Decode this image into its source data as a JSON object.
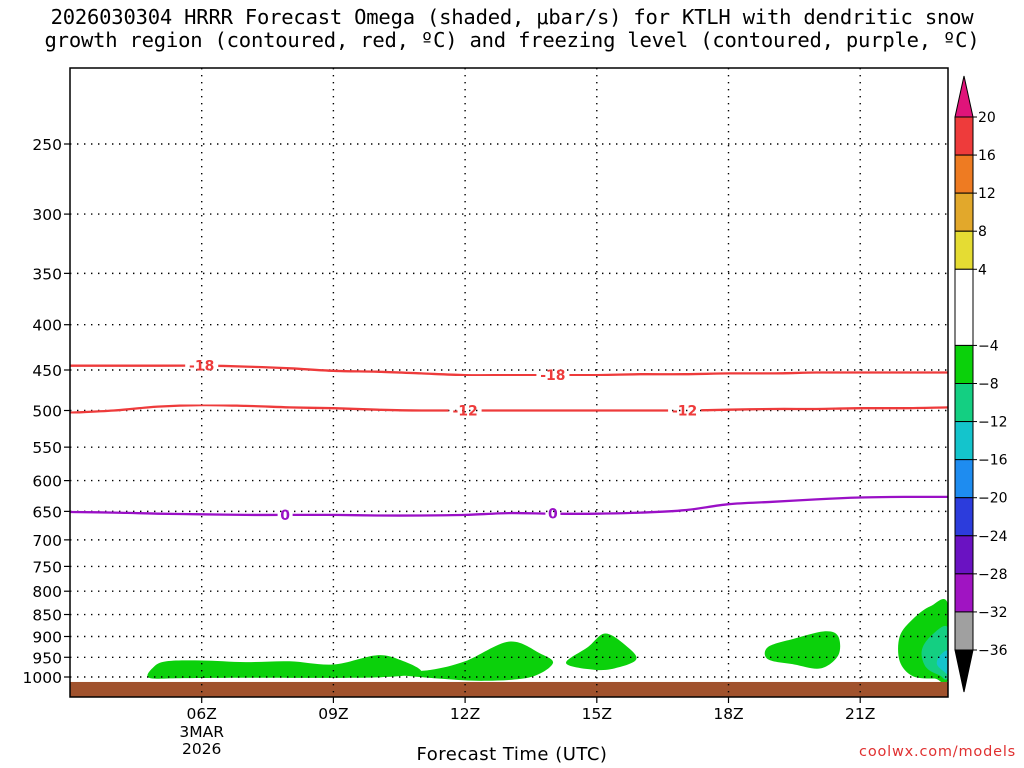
{
  "title_lines": [
    "2026030304 HRRR Forecast Omega (shaded, μbar/s) for KTLH with dendritic snow",
    "growth region (contoured, red, ºC) and freezing level (contoured, purple, ºC)"
  ],
  "xlabel": "Forecast Time (UTC)",
  "credit": "coolwx.com/models",
  "chart_data": {
    "type": "time-height cross section",
    "x_axis": {
      "unit": "hours (UTC)",
      "range": [
        3.0,
        23.0
      ],
      "ticks": [
        {
          "hour": 6,
          "label": "06Z",
          "sublabels": [
            "3MAR",
            "2026"
          ]
        },
        {
          "hour": 9,
          "label": "09Z",
          "sublabels": []
        },
        {
          "hour": 12,
          "label": "12Z",
          "sublabels": []
        },
        {
          "hour": 15,
          "label": "15Z",
          "sublabels": []
        },
        {
          "hour": 18,
          "label": "18Z",
          "sublabels": []
        },
        {
          "hour": 21,
          "label": "21Z",
          "sublabels": []
        }
      ]
    },
    "y_axis": {
      "unit": "hPa",
      "scale": "log",
      "range": [
        1025,
        200
      ],
      "ticks": [
        250,
        300,
        350,
        400,
        450,
        500,
        550,
        600,
        650,
        700,
        750,
        800,
        850,
        900,
        950,
        1000
      ]
    },
    "grid": "dotted",
    "ground_pressure_hPa": 1013,
    "contours": [
      {
        "level": "-18",
        "color": "#ee3b3b",
        "labels_at_hours": [
          6.0,
          14.0
        ],
        "points": [
          [
            3.0,
            445
          ],
          [
            5.0,
            445
          ],
          [
            6.0,
            445
          ],
          [
            7.0,
            446
          ],
          [
            8.0,
            448
          ],
          [
            9.0,
            451
          ],
          [
            10.0,
            452
          ],
          [
            11.0,
            454
          ],
          [
            12.0,
            456
          ],
          [
            13.0,
            456
          ],
          [
            14.0,
            456
          ],
          [
            15.0,
            456
          ],
          [
            16.0,
            455
          ],
          [
            17.0,
            455
          ],
          [
            18.0,
            454
          ],
          [
            19.0,
            454
          ],
          [
            20.0,
            453
          ],
          [
            21.0,
            453
          ],
          [
            22.0,
            453
          ],
          [
            23.0,
            453
          ]
        ]
      },
      {
        "level": "-12",
        "color": "#ee3b3b",
        "labels_at_hours": [
          12.0,
          17.0
        ],
        "points": [
          [
            3.0,
            503
          ],
          [
            4.0,
            500
          ],
          [
            5.0,
            495
          ],
          [
            6.0,
            493
          ],
          [
            7.0,
            494
          ],
          [
            8.0,
            496
          ],
          [
            9.0,
            497
          ],
          [
            10.0,
            499
          ],
          [
            11.0,
            500
          ],
          [
            12.0,
            500
          ],
          [
            13.0,
            500
          ],
          [
            14.0,
            500
          ],
          [
            15.0,
            500
          ],
          [
            16.0,
            500
          ],
          [
            17.0,
            500
          ],
          [
            18.0,
            499
          ],
          [
            19.0,
            498
          ],
          [
            20.0,
            498
          ],
          [
            21.0,
            497
          ],
          [
            22.0,
            497
          ],
          [
            23.0,
            496
          ]
        ]
      },
      {
        "level": "0",
        "color": "#9a10c6",
        "labels_at_hours": [
          7.9,
          14.0
        ],
        "points": [
          [
            3.0,
            651
          ],
          [
            4.0,
            652
          ],
          [
            5.0,
            654
          ],
          [
            6.0,
            655
          ],
          [
            7.0,
            656
          ],
          [
            8.0,
            656
          ],
          [
            9.0,
            656
          ],
          [
            10.0,
            657
          ],
          [
            11.0,
            657
          ],
          [
            12.0,
            656
          ],
          [
            13.0,
            653
          ],
          [
            14.0,
            654
          ],
          [
            15.0,
            654
          ],
          [
            16.0,
            652
          ],
          [
            17.0,
            648
          ],
          [
            18.0,
            638
          ],
          [
            19.0,
            634
          ],
          [
            20.0,
            630
          ],
          [
            21.0,
            627
          ],
          [
            22.0,
            626
          ],
          [
            23.0,
            626
          ]
        ]
      }
    ],
    "shaded_regions": [
      {
        "value_range": [
          -8,
          -4
        ],
        "points": [
          [
            4.8,
            1002
          ],
          [
            4.9,
            975
          ],
          [
            5.2,
            960
          ],
          [
            6.0,
            958
          ],
          [
            7.0,
            962
          ],
          [
            8.0,
            960
          ],
          [
            9.0,
            968
          ],
          [
            10.0,
            945
          ],
          [
            10.6,
            960
          ],
          [
            11.0,
            985
          ],
          [
            10.6,
            997
          ],
          [
            9.5,
            1002
          ],
          [
            7.0,
            1002
          ],
          [
            5.5,
            1003
          ]
        ]
      },
      {
        "value_range": [
          -8,
          -4
        ],
        "points": [
          [
            10.2,
            990
          ],
          [
            11.2,
            982
          ],
          [
            12.0,
            960
          ],
          [
            13.0,
            912
          ],
          [
            13.7,
            940
          ],
          [
            14.0,
            965
          ],
          [
            13.5,
            1000
          ],
          [
            12.5,
            1010
          ],
          [
            11.5,
            1005
          ]
        ]
      },
      {
        "value_range": [
          -8,
          -4
        ],
        "points": [
          [
            14.3,
            965
          ],
          [
            14.8,
            925
          ],
          [
            15.2,
            893
          ],
          [
            15.7,
            925
          ],
          [
            15.9,
            955
          ],
          [
            15.5,
            975
          ],
          [
            15.0,
            982
          ]
        ]
      },
      {
        "value_range": [
          -8,
          -4
        ],
        "points": [
          [
            18.9,
            925
          ],
          [
            19.5,
            905
          ],
          [
            20.2,
            888
          ],
          [
            20.5,
            900
          ],
          [
            20.5,
            945
          ],
          [
            20.1,
            978
          ],
          [
            19.5,
            968
          ],
          [
            18.9,
            955
          ]
        ]
      },
      {
        "value_range": [
          -8,
          -4
        ],
        "points": [
          [
            23.0,
            828
          ],
          [
            22.6,
            832
          ],
          [
            22.2,
            860
          ],
          [
            21.9,
            900
          ],
          [
            21.9,
            960
          ],
          [
            22.2,
            998
          ],
          [
            22.7,
            1004
          ],
          [
            23.0,
            1004
          ]
        ]
      },
      {
        "value_range": [
          -12,
          -8
        ],
        "points": [
          [
            23.0,
            880
          ],
          [
            22.6,
            900
          ],
          [
            22.4,
            935
          ],
          [
            22.5,
            975
          ],
          [
            22.8,
            995
          ],
          [
            23.0,
            998
          ]
        ]
      },
      {
        "value_range": [
          -16,
          -12
        ],
        "points": [
          [
            23.0,
            935
          ],
          [
            22.8,
            948
          ],
          [
            22.75,
            968
          ],
          [
            22.9,
            985
          ],
          [
            23.0,
            988
          ]
        ]
      }
    ],
    "colorbar": {
      "label_values": [
        20,
        16,
        12,
        8,
        4,
        -4,
        -8,
        -12,
        -16,
        -20,
        -24,
        -28,
        -32,
        -36
      ],
      "bins": [
        {
          "from": 16,
          "to": 20,
          "color": "#ee3b3b"
        },
        {
          "from": 12,
          "to": 16,
          "color": "#ee7b22"
        },
        {
          "from": 8,
          "to": 12,
          "color": "#e2a82b"
        },
        {
          "from": 4,
          "to": 8,
          "color": "#e5dc33"
        },
        {
          "from": -4,
          "to": 4,
          "color": "#ffffff"
        },
        {
          "from": -8,
          "to": -4,
          "color": "#0bd10b"
        },
        {
          "from": -12,
          "to": -8,
          "color": "#14cf82"
        },
        {
          "from": -16,
          "to": -12,
          "color": "#14c4cc"
        },
        {
          "from": -20,
          "to": -16,
          "color": "#1e8cf0"
        },
        {
          "from": -24,
          "to": -20,
          "color": "#2c3cdc"
        },
        {
          "from": -28,
          "to": -24,
          "color": "#6a12c2"
        },
        {
          "from": -32,
          "to": -28,
          "color": "#a014c2"
        },
        {
          "from": -36,
          "to": -32,
          "color": "#a0a0a0"
        }
      ],
      "over_color": "#e0147a",
      "under_color": "#000000"
    }
  }
}
